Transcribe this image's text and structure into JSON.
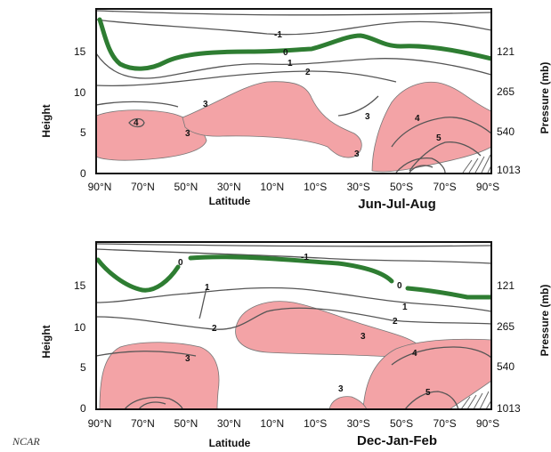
{
  "chart_data": [
    {
      "type": "contour",
      "season_label": "Jun-Jul-Aug",
      "xlabel": "Latitude",
      "ylabel_left": "Height",
      "ylabel_right": "Pressure (mb)",
      "x_ticks": [
        "90°N",
        "70°N",
        "50°N",
        "30°N",
        "10°N",
        "10°S",
        "30°S",
        "50°S",
        "70°S",
        "90°S"
      ],
      "y_ticks_left": [
        "0",
        "5",
        "10",
        "15"
      ],
      "y_ticks_right": [
        "1013",
        "540",
        "265",
        "121"
      ],
      "contour_labels": [
        "-1",
        "0",
        "1",
        "2",
        "3",
        "3",
        "3",
        "3",
        "4",
        "4",
        "5"
      ]
    },
    {
      "type": "contour",
      "season_label": "Dec-Jan-Feb",
      "xlabel": "Latitude",
      "ylabel_left": "Height",
      "ylabel_right": "Pressure (mb)",
      "x_ticks": [
        "90°N",
        "70°N",
        "50°N",
        "30°N",
        "10°N",
        "10°S",
        "30°S",
        "50°S",
        "70°S",
        "90°S"
      ],
      "y_ticks_left": [
        "0",
        "5",
        "10",
        "15"
      ],
      "y_ticks_right": [
        "1013",
        "540",
        "265",
        "121"
      ],
      "contour_labels": [
        "-1",
        "0",
        "0",
        "1",
        "1",
        "2",
        "2",
        "3",
        "3",
        "3",
        "4",
        "5"
      ]
    }
  ],
  "credit": "NCAR",
  "colors": {
    "shaded": "#f3a3a6",
    "zero_line": "#2e7d32",
    "contour": "#555555"
  }
}
